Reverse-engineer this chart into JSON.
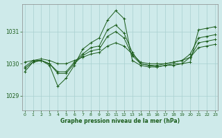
{
  "xlabel": "Graphe pression niveau de la mer (hPa)",
  "bg_color": "#ceeaea",
  "line_color": "#1a5c1a",
  "grid_color": "#a8d0d0",
  "x_ticks": [
    0,
    1,
    2,
    3,
    4,
    5,
    6,
    7,
    8,
    9,
    10,
    11,
    12,
    13,
    14,
    15,
    16,
    17,
    18,
    19,
    20,
    21,
    22,
    23
  ],
  "y_ticks": [
    1029,
    1030,
    1031
  ],
  "ylim": [
    1028.55,
    1031.85
  ],
  "xlim": [
    -0.3,
    23.3
  ],
  "series": [
    [
      1029.75,
      1030.05,
      1030.1,
      1029.95,
      1029.3,
      1029.55,
      1029.95,
      1030.45,
      1030.65,
      1030.8,
      1031.35,
      1031.65,
      1031.4,
      1030.1,
      1029.95,
      1029.9,
      1029.9,
      1029.95,
      1029.95,
      1030.0,
      1030.05,
      1031.05,
      1031.1,
      1031.15
    ],
    [
      1029.9,
      1030.1,
      1030.1,
      1030.0,
      1029.75,
      1029.75,
      1030.05,
      1030.3,
      1030.5,
      1030.55,
      1031.05,
      1031.2,
      1030.95,
      1030.35,
      1030.0,
      1029.95,
      1029.95,
      1030.0,
      1030.05,
      1030.1,
      1030.3,
      1030.8,
      1030.85,
      1030.9
    ],
    [
      1029.85,
      1030.05,
      1030.1,
      1030.0,
      1029.7,
      1029.7,
      1030.0,
      1030.25,
      1030.4,
      1030.45,
      1030.85,
      1031.0,
      1030.8,
      1030.25,
      1030.0,
      1029.95,
      1029.9,
      1029.95,
      1030.0,
      1030.0,
      1030.2,
      1030.65,
      1030.7,
      1030.75
    ],
    [
      1030.05,
      1030.1,
      1030.15,
      1030.1,
      1030.0,
      1030.0,
      1030.1,
      1030.2,
      1030.3,
      1030.35,
      1030.55,
      1030.65,
      1030.55,
      1030.3,
      1030.05,
      1030.0,
      1030.0,
      1030.0,
      1030.05,
      1030.1,
      1030.2,
      1030.5,
      1030.55,
      1030.6
    ]
  ]
}
